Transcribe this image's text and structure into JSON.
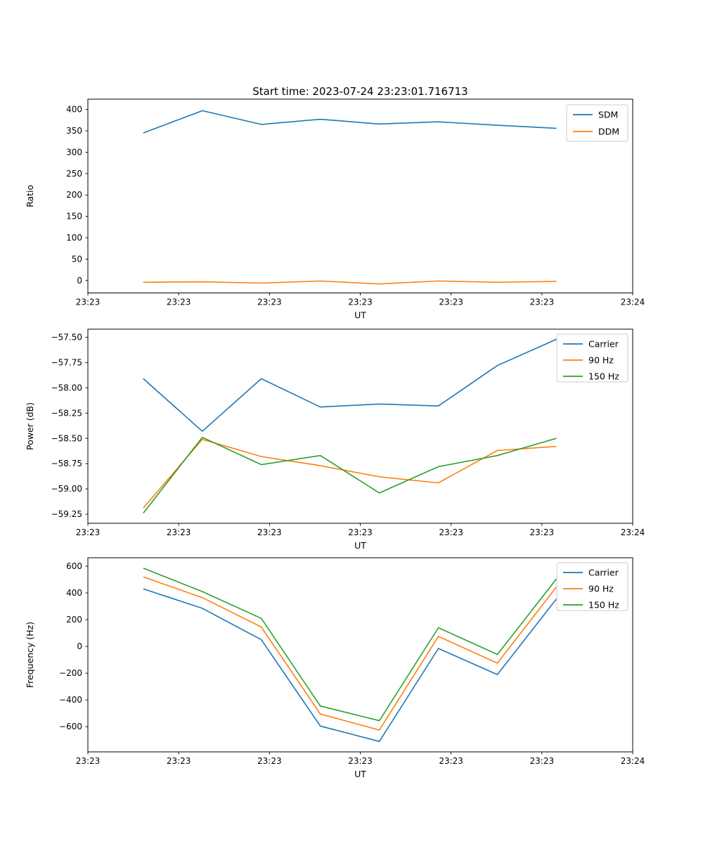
{
  "figure": {
    "title": "Start time: 2023-07-24 23:23:01.716713",
    "background_color": "#ffffff",
    "text_color": "#000000"
  },
  "colors": {
    "blue": "#1f77b4",
    "orange": "#ff7f0e",
    "green": "#2ca02c",
    "legend_edge": "#cccccc",
    "spine": "#000000"
  },
  "chart_data": [
    {
      "type": "line",
      "title": "Start time: 2023-07-24 23:23:01.716713",
      "xlabel": "UT",
      "ylabel": "Ratio",
      "x_seconds": [
        6.1,
        12.6,
        19.1,
        25.6,
        32.1,
        38.6,
        45.1,
        51.6
      ],
      "xlim_seconds": [
        0,
        60
      ],
      "x_tick_labels": [
        "23:23",
        "23:23",
        "23:23",
        "23:23",
        "23:23",
        "23:23",
        "23:24"
      ],
      "y_ticks": [
        0,
        50,
        100,
        150,
        200,
        250,
        300,
        350,
        400
      ],
      "y_tick_labels": [
        "0",
        "50",
        "100",
        "150",
        "200",
        "250",
        "300",
        "350",
        "400"
      ],
      "ylim": [
        -29,
        424
      ],
      "grid": false,
      "legend_position": "upper right",
      "series": [
        {
          "name": "SDM",
          "color_key": "blue",
          "values": [
            345,
            397,
            365,
            377,
            366,
            371,
            363,
            356
          ]
        },
        {
          "name": "DDM",
          "color_key": "orange",
          "values": [
            -4,
            -3,
            -6,
            -1,
            -8,
            -1,
            -4,
            -2
          ]
        }
      ]
    },
    {
      "type": "line",
      "title": "",
      "xlabel": "UT",
      "ylabel": "Power (dB)",
      "x_seconds": [
        6.1,
        12.6,
        19.1,
        25.6,
        32.1,
        38.6,
        45.1,
        51.6
      ],
      "xlim_seconds": [
        0,
        60
      ],
      "x_tick_labels": [
        "23:23",
        "23:23",
        "23:23",
        "23:23",
        "23:23",
        "23:23",
        "23:24"
      ],
      "y_ticks": [
        -59.25,
        -59.0,
        -58.75,
        -58.5,
        -58.25,
        -58.0,
        -57.75,
        -57.5
      ],
      "y_tick_labels": [
        "−59.25",
        "−59.00",
        "−58.75",
        "−58.50",
        "−58.25",
        "−58.00",
        "−57.75",
        "−57.50"
      ],
      "ylim": [
        -59.34,
        -57.42
      ],
      "grid": false,
      "legend_position": "upper right",
      "series": [
        {
          "name": "Carrier",
          "color_key": "blue",
          "values": [
            -57.91,
            -58.43,
            -57.91,
            -58.19,
            -58.16,
            -58.18,
            -57.78,
            -57.52
          ]
        },
        {
          "name": "90 Hz",
          "color_key": "orange",
          "values": [
            -59.19,
            -58.51,
            -58.68,
            -58.77,
            -58.88,
            -58.94,
            -58.62,
            -58.58
          ]
        },
        {
          "name": "150 Hz",
          "color_key": "green",
          "values": [
            -59.24,
            -58.49,
            -58.76,
            -58.67,
            -59.04,
            -58.78,
            -58.67,
            -58.5
          ]
        }
      ]
    },
    {
      "type": "line",
      "title": "",
      "xlabel": "UT",
      "ylabel": "Frequency (Hz)",
      "x_seconds": [
        6.1,
        12.6,
        19.1,
        25.6,
        32.1,
        38.6,
        45.1,
        51.6
      ],
      "xlim_seconds": [
        0,
        60
      ],
      "x_tick_labels": [
        "23:23",
        "23:23",
        "23:23",
        "23:23",
        "23:23",
        "23:23",
        "23:24"
      ],
      "y_ticks": [
        -600,
        -400,
        -200,
        0,
        200,
        400,
        600
      ],
      "y_tick_labels": [
        "−600",
        "−400",
        "−200",
        "0",
        "200",
        "400",
        "600"
      ],
      "ylim": [
        -788,
        663
      ],
      "grid": false,
      "legend_position": "upper right",
      "series": [
        {
          "name": "Carrier",
          "color_key": "blue",
          "values": [
            430,
            285,
            50,
            -595,
            -710,
            -15,
            -210,
            355
          ]
        },
        {
          "name": "90 Hz",
          "color_key": "orange",
          "values": [
            520,
            365,
            145,
            -505,
            -625,
            75,
            -125,
            445
          ]
        },
        {
          "name": "150 Hz",
          "color_key": "green",
          "values": [
            585,
            410,
            210,
            -445,
            -555,
            140,
            -60,
            505
          ]
        }
      ]
    }
  ]
}
